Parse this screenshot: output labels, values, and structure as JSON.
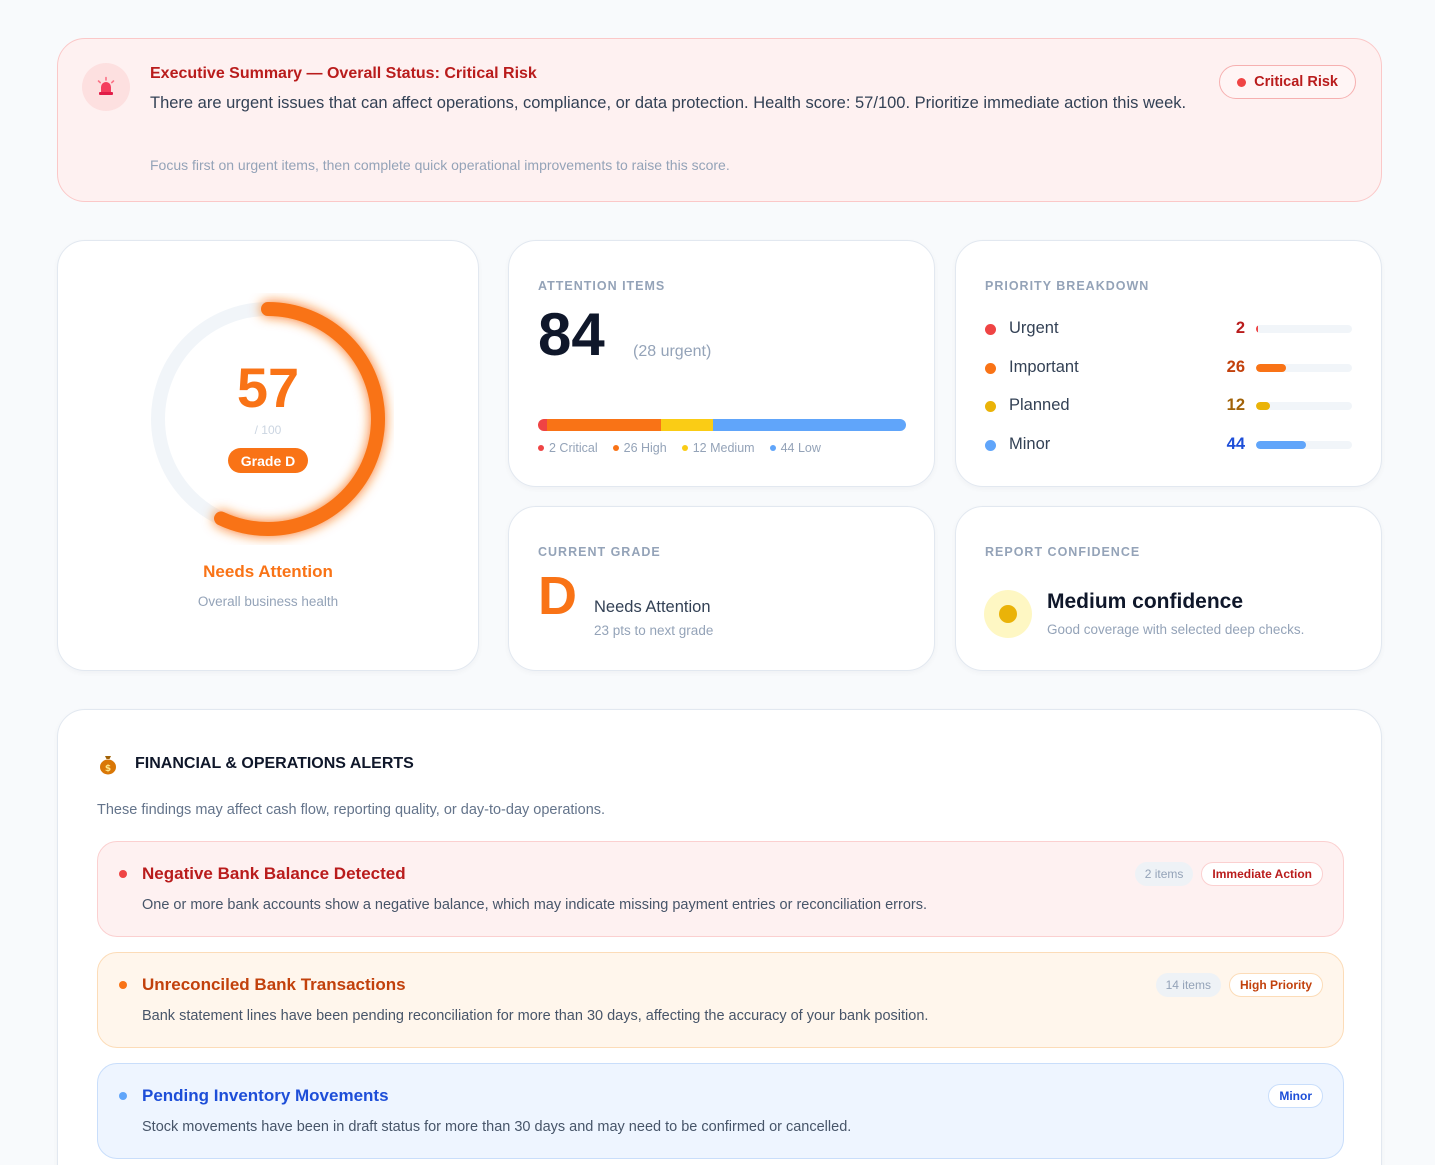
{
  "banner": {
    "title": "Executive Summary — Overall Status: Critical Risk",
    "text": "There are urgent issues that can affect operations, compliance, or data protection. Health score: 57/100. Prioritize immediate action this week.",
    "footnote": "Focus first on urgent items, then complete quick operational improvements to raise this score.",
    "status_label": "Critical Risk",
    "icon": "siren-icon"
  },
  "health": {
    "score": "57",
    "max": "/ 100",
    "score_fraction": 0.57,
    "grade_label": "Grade D",
    "status": "Needs Attention",
    "subtitle": "Overall business health"
  },
  "attention": {
    "label": "ATTENTION ITEMS",
    "total": "84",
    "urgent_note": "(28 urgent)",
    "segments": [
      {
        "label": "2 Critical",
        "value": 2,
        "color": "#ef4444"
      },
      {
        "label": "26 High",
        "value": 26,
        "color": "#f97316"
      },
      {
        "label": "12 Medium",
        "value": 12,
        "color": "#facc15"
      },
      {
        "label": "44 Low",
        "value": 44,
        "color": "#60a5fa"
      }
    ]
  },
  "priority": {
    "label": "PRIORITY BREAKDOWN",
    "max_value": 84,
    "rows": [
      {
        "name": "Urgent",
        "count": "2",
        "value": 2,
        "color": "#ef4444",
        "text_color": "#b91c1c"
      },
      {
        "name": "Important",
        "count": "26",
        "value": 26,
        "color": "#f97316",
        "text_color": "#c2410c"
      },
      {
        "name": "Planned",
        "count": "12",
        "value": 12,
        "color": "#eab308",
        "text_color": "#a16207"
      },
      {
        "name": "Minor",
        "count": "44",
        "value": 44,
        "color": "#60a5fa",
        "text_color": "#1d4ed8"
      }
    ]
  },
  "grade": {
    "label": "CURRENT GRADE",
    "letter": "D",
    "status": "Needs Attention",
    "next": "23 pts to next grade"
  },
  "confidence": {
    "label": "REPORT CONFIDENCE",
    "title": "Medium confidence",
    "subtitle": "Good coverage with selected deep checks."
  },
  "alerts": {
    "icon": "money-bag-icon",
    "title": "FINANCIAL & OPERATIONS ALERTS",
    "intro": "These findings may affect cash flow, reporting quality, or day-to-day operations.",
    "items": [
      {
        "title": "Negative Bank Balance Detected",
        "desc": "One or more bank accounts show a negative balance, which may indicate missing payment entries or reconciliation errors.",
        "count": "2 items",
        "severity": "Immediate Action",
        "colors": {
          "bg": "#fef1f1",
          "border": "#fbd0d0",
          "accent": "#ef4444",
          "title": "#b91c1c"
        }
      },
      {
        "title": "Unreconciled Bank Transactions",
        "desc": "Bank statement lines have been pending reconciliation for more than 30 days, affecting the accuracy of your bank position.",
        "count": "14 items",
        "severity": "High Priority",
        "colors": {
          "bg": "#fff6ec",
          "border": "#fcdcb8",
          "accent": "#f97316",
          "title": "#c2410c"
        }
      },
      {
        "title": "Pending Inventory Movements",
        "desc": "Stock movements have been in draft status for more than 30 days and may need to be confirmed or cancelled.",
        "count": "",
        "severity": "Minor",
        "colors": {
          "bg": "#eef5ff",
          "border": "#c9defb",
          "accent": "#60a5fa",
          "title": "#1d4ed8"
        }
      }
    ]
  }
}
